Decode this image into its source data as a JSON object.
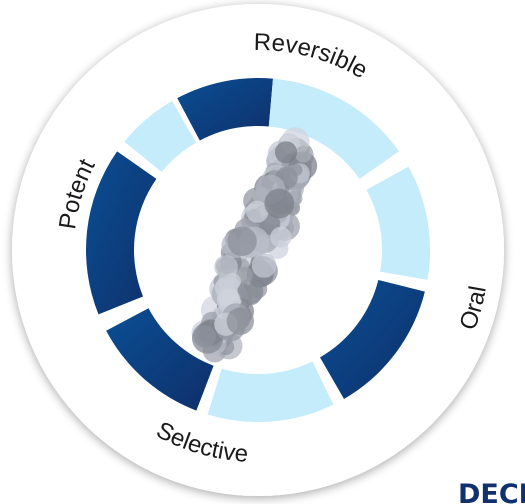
{
  "labels": {
    "reversible": "Reversible",
    "oral": "Oral",
    "selective": "Selective",
    "potent": "Potent"
  },
  "footer_text": "DECI"
}
